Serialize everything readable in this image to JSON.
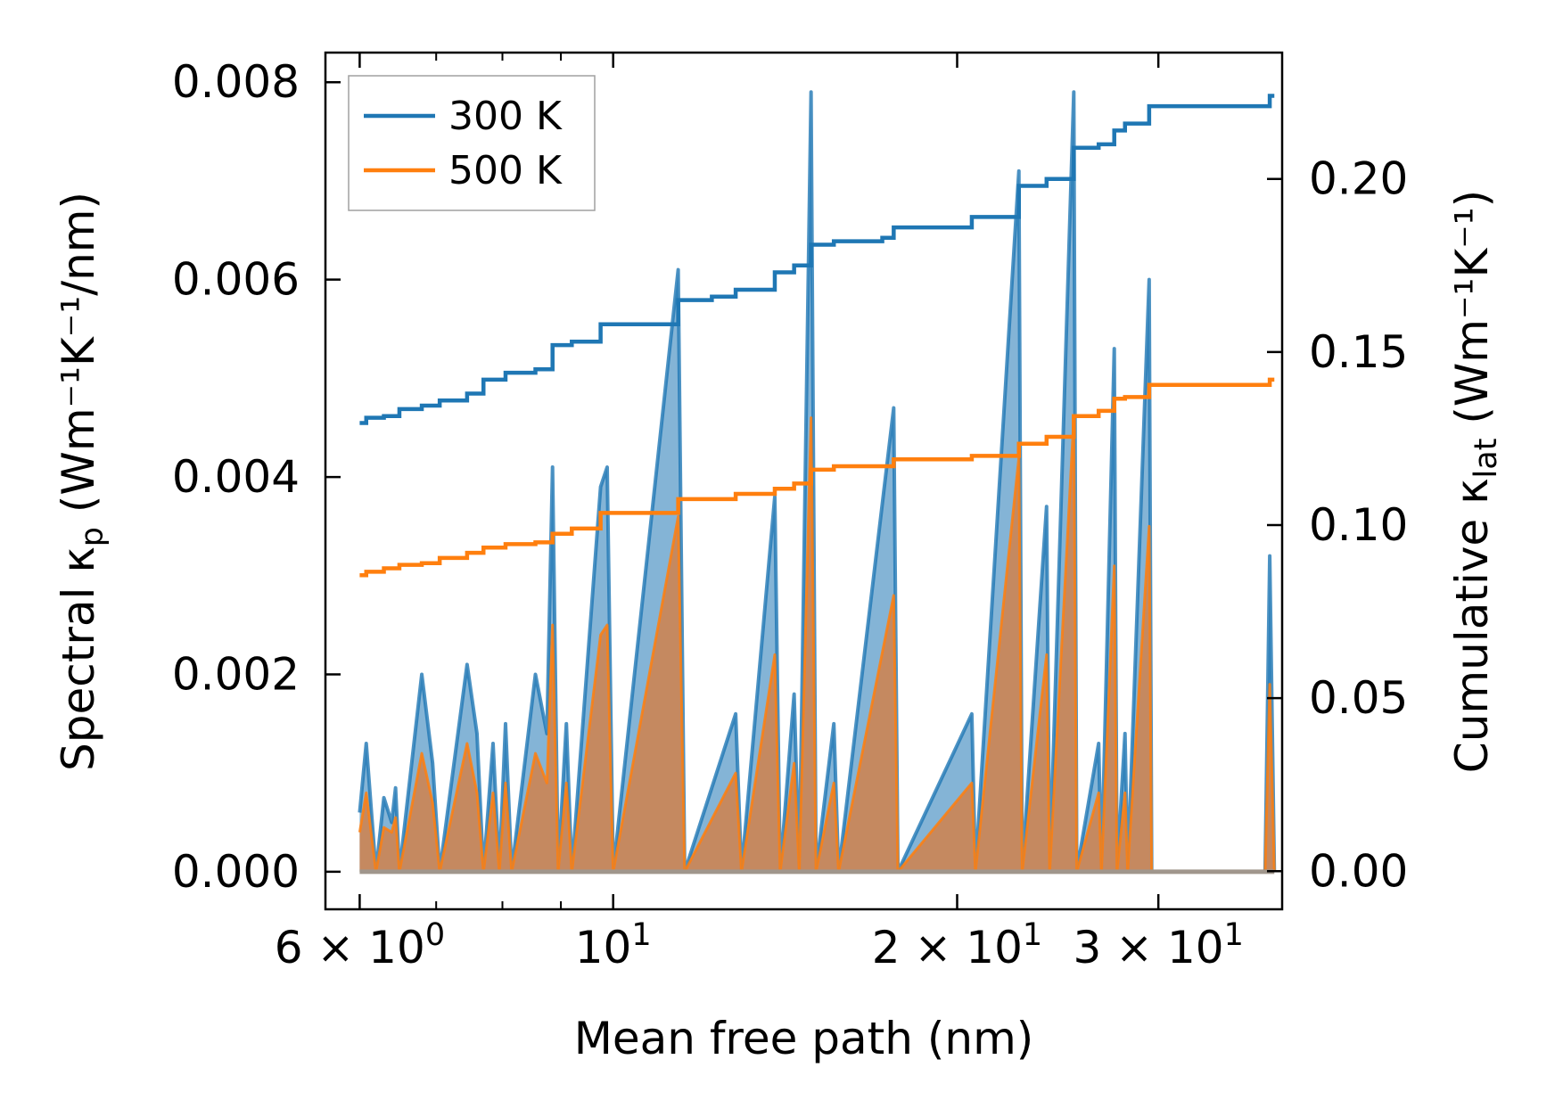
{
  "chart_data": {
    "type": "line",
    "xlabel": "Mean free path (nm)",
    "ylabel_left": {
      "prefix": "Spectral κ",
      "sub": "p",
      "unit": "(Wm⁻¹K⁻¹/nm)"
    },
    "ylabel_right": {
      "prefix": "Cumulative κ",
      "sub": "lat",
      "unit": "(Wm⁻¹K⁻¹)"
    },
    "xscale": "log",
    "xlim": [
      5.6,
      38.5
    ],
    "ylim_left": [
      -0.00038,
      0.0083
    ],
    "ylim_right": [
      -0.011,
      0.2365
    ],
    "x_ticks": [
      {
        "value": 6,
        "label": "6 × 10",
        "exp": "0"
      },
      {
        "value": 10,
        "label": "10",
        "exp": "1"
      },
      {
        "value": 20,
        "label": "2 × 10",
        "exp": "1"
      },
      {
        "value": 30,
        "label": "3 × 10",
        "exp": "1"
      }
    ],
    "x_minor_ticks": [
      7,
      8,
      9
    ],
    "y_left_ticks": [
      "0.000",
      "0.002",
      "0.004",
      "0.006",
      "0.008"
    ],
    "y_right_ticks": [
      "0.00",
      "0.05",
      "0.10",
      "0.15",
      "0.20"
    ],
    "legend": {
      "position": "upper-left",
      "entries": [
        "300 K",
        "500 K"
      ]
    },
    "colors": {
      "300 K": "#1f77b4",
      "500 K": "#ff7f0e",
      "spectral_fill_500": "#c8875a"
    },
    "spectral_300K": [
      [
        6.0,
        0.0006
      ],
      [
        6.08,
        0.0013
      ],
      [
        6.2,
        0
      ],
      [
        6.3,
        0.00075
      ],
      [
        6.4,
        0.0005
      ],
      [
        6.45,
        0.00085
      ],
      [
        6.5,
        0
      ],
      [
        6.8,
        0.002
      ],
      [
        6.95,
        0.0011
      ],
      [
        7.05,
        0
      ],
      [
        7.45,
        0.0021
      ],
      [
        7.6,
        0.0014
      ],
      [
        7.7,
        0
      ],
      [
        7.85,
        0.0013
      ],
      [
        7.95,
        0
      ],
      [
        8.05,
        0.0015
      ],
      [
        8.15,
        0
      ],
      [
        8.55,
        0.002
      ],
      [
        8.75,
        0.0014
      ],
      [
        8.85,
        0.0041
      ],
      [
        8.95,
        0
      ],
      [
        9.1,
        0.0015
      ],
      [
        9.2,
        0
      ],
      [
        9.75,
        0.0039
      ],
      [
        9.88,
        0.0041
      ],
      [
        10.0,
        0
      ],
      [
        11.4,
        0.0061
      ],
      [
        11.55,
        0
      ],
      [
        12.8,
        0.0016
      ],
      [
        12.95,
        0
      ],
      [
        13.85,
        0.0038
      ],
      [
        14.0,
        0
      ],
      [
        14.4,
        0.0018
      ],
      [
        14.55,
        0
      ],
      [
        14.9,
        0.0079
      ],
      [
        15.05,
        0
      ],
      [
        15.6,
        0.0015
      ],
      [
        15.75,
        0
      ],
      [
        17.6,
        0.0047
      ],
      [
        17.75,
        0
      ],
      [
        20.6,
        0.0016
      ],
      [
        20.75,
        0
      ],
      [
        22.65,
        0.0071
      ],
      [
        22.8,
        0
      ],
      [
        23.95,
        0.0037
      ],
      [
        24.1,
        0
      ],
      [
        25.3,
        0.0079
      ],
      [
        25.45,
        0
      ],
      [
        26.6,
        0.0013
      ],
      [
        26.75,
        0
      ],
      [
        27.45,
        0.0053
      ],
      [
        27.6,
        0
      ],
      [
        28.05,
        0.0014
      ],
      [
        28.2,
        0
      ],
      [
        29.45,
        0.006
      ],
      [
        29.6,
        0
      ],
      [
        37.2,
        0
      ],
      [
        37.55,
        0.0032
      ],
      [
        37.9,
        0
      ]
    ],
    "spectral_500K": [
      [
        6.0,
        0.0004
      ],
      [
        6.08,
        0.0008
      ],
      [
        6.2,
        0
      ],
      [
        6.3,
        0.00045
      ],
      [
        6.4,
        0.0004
      ],
      [
        6.45,
        0.00055
      ],
      [
        6.5,
        0
      ],
      [
        6.8,
        0.0012
      ],
      [
        6.95,
        0.0007
      ],
      [
        7.05,
        0
      ],
      [
        7.45,
        0.0013
      ],
      [
        7.6,
        0.0008
      ],
      [
        7.7,
        0
      ],
      [
        7.85,
        0.0008
      ],
      [
        7.95,
        0
      ],
      [
        8.05,
        0.0009
      ],
      [
        8.15,
        0
      ],
      [
        8.55,
        0.0012
      ],
      [
        8.75,
        0.0009
      ],
      [
        8.85,
        0.0025
      ],
      [
        8.95,
        0
      ],
      [
        9.1,
        0.0009
      ],
      [
        9.2,
        0
      ],
      [
        9.75,
        0.0024
      ],
      [
        9.88,
        0.0025
      ],
      [
        10.0,
        0
      ],
      [
        11.4,
        0.0036
      ],
      [
        11.55,
        0
      ],
      [
        12.8,
        0.001
      ],
      [
        12.95,
        0
      ],
      [
        13.85,
        0.0022
      ],
      [
        14.0,
        0
      ],
      [
        14.4,
        0.0011
      ],
      [
        14.55,
        0
      ],
      [
        14.9,
        0.0046
      ],
      [
        15.05,
        0
      ],
      [
        15.6,
        0.0009
      ],
      [
        15.75,
        0
      ],
      [
        17.6,
        0.0028
      ],
      [
        17.75,
        0
      ],
      [
        20.6,
        0.0009
      ],
      [
        20.75,
        0
      ],
      [
        22.65,
        0.0042
      ],
      [
        22.8,
        0
      ],
      [
        23.95,
        0.0022
      ],
      [
        24.1,
        0
      ],
      [
        25.3,
        0.0046
      ],
      [
        25.45,
        0
      ],
      [
        26.6,
        0.0008
      ],
      [
        26.75,
        0
      ],
      [
        27.45,
        0.0031
      ],
      [
        27.6,
        0
      ],
      [
        28.05,
        0.0008
      ],
      [
        28.2,
        0
      ],
      [
        29.45,
        0.0035
      ],
      [
        29.6,
        0
      ],
      [
        37.2,
        0
      ],
      [
        37.55,
        0.0019
      ],
      [
        37.9,
        0
      ]
    ],
    "cumulative_300K": [
      [
        6.0,
        0.1295
      ],
      [
        6.08,
        0.131
      ],
      [
        6.3,
        0.1315
      ],
      [
        6.5,
        0.1335
      ],
      [
        6.8,
        0.1345
      ],
      [
        7.05,
        0.136
      ],
      [
        7.45,
        0.138
      ],
      [
        7.7,
        0.142
      ],
      [
        8.05,
        0.144
      ],
      [
        8.55,
        0.145
      ],
      [
        8.85,
        0.152
      ],
      [
        9.2,
        0.153
      ],
      [
        9.75,
        0.158
      ],
      [
        11.4,
        0.165
      ],
      [
        12.2,
        0.166
      ],
      [
        12.8,
        0.168
      ],
      [
        13.85,
        0.173
      ],
      [
        14.4,
        0.175
      ],
      [
        14.9,
        0.181
      ],
      [
        15.6,
        0.182
      ],
      [
        17.2,
        0.183
      ],
      [
        17.6,
        0.186
      ],
      [
        20.6,
        0.189
      ],
      [
        22.65,
        0.198
      ],
      [
        23.95,
        0.2
      ],
      [
        25.3,
        0.209
      ],
      [
        26.6,
        0.21
      ],
      [
        27.45,
        0.214
      ],
      [
        28.05,
        0.216
      ],
      [
        29.45,
        0.221
      ],
      [
        37.2,
        0.221
      ],
      [
        37.55,
        0.224
      ],
      [
        37.9,
        0.224
      ]
    ],
    "cumulative_500K": [
      [
        6.0,
        0.0855
      ],
      [
        6.08,
        0.0865
      ],
      [
        6.3,
        0.0875
      ],
      [
        6.5,
        0.0885
      ],
      [
        6.8,
        0.089
      ],
      [
        7.05,
        0.0905
      ],
      [
        7.45,
        0.092
      ],
      [
        7.7,
        0.0935
      ],
      [
        8.05,
        0.0945
      ],
      [
        8.55,
        0.095
      ],
      [
        8.85,
        0.0975
      ],
      [
        9.2,
        0.099
      ],
      [
        9.75,
        0.1035
      ],
      [
        11.4,
        0.1075
      ],
      [
        12.8,
        0.109
      ],
      [
        13.85,
        0.1105
      ],
      [
        14.4,
        0.112
      ],
      [
        14.9,
        0.116
      ],
      [
        15.6,
        0.117
      ],
      [
        17.6,
        0.119
      ],
      [
        20.6,
        0.12
      ],
      [
        22.65,
        0.1235
      ],
      [
        23.95,
        0.1255
      ],
      [
        25.3,
        0.1315
      ],
      [
        26.6,
        0.133
      ],
      [
        27.45,
        0.1365
      ],
      [
        28.05,
        0.137
      ],
      [
        29.45,
        0.1405
      ],
      [
        37.2,
        0.1405
      ],
      [
        37.55,
        0.142
      ],
      [
        37.9,
        0.142
      ]
    ]
  }
}
